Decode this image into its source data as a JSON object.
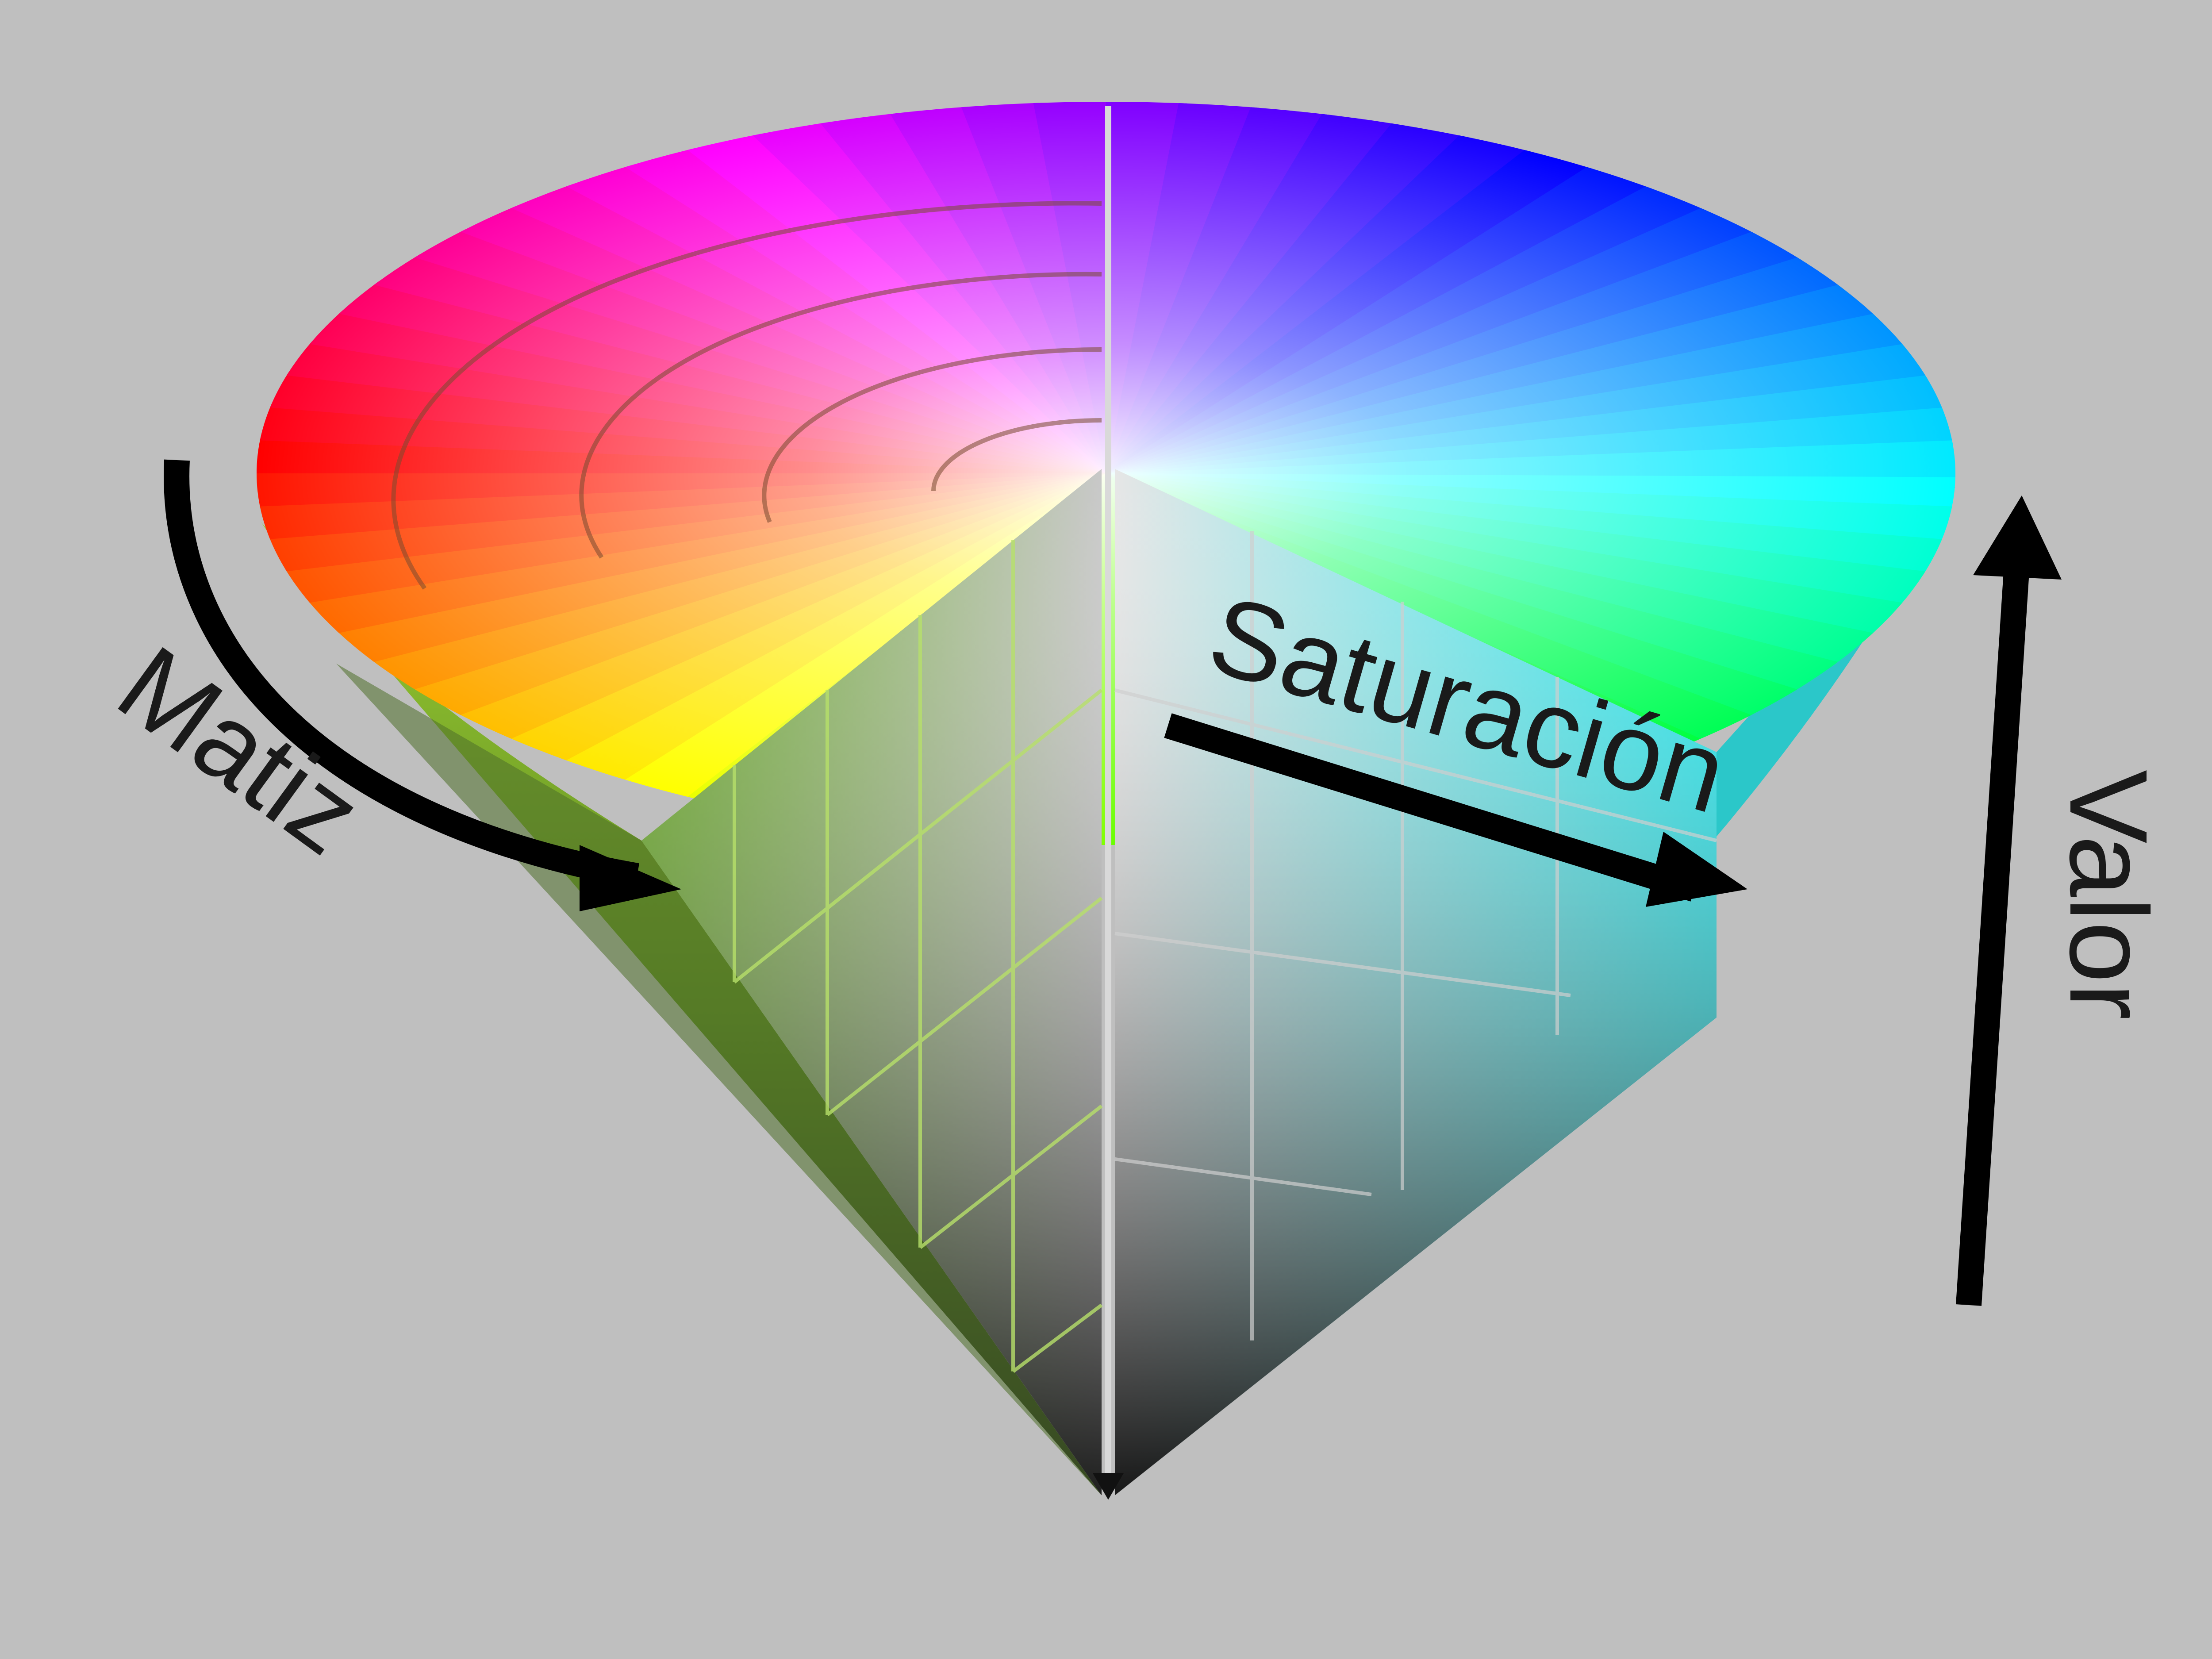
{
  "labels": {
    "hue": "Matiz",
    "saturation": "Saturación",
    "value": "Valor"
  },
  "colors": {
    "background": "#bfbfbf",
    "arrow": "#000000",
    "label": "#1a1a1a",
    "hue_red": "#ff0000",
    "hue_yellow": "#ffff00",
    "hue_green": "#00ff00",
    "hue_cyan": "#00ffff",
    "hue_blue": "#0000ff",
    "hue_magenta": "#ff00ff"
  }
}
